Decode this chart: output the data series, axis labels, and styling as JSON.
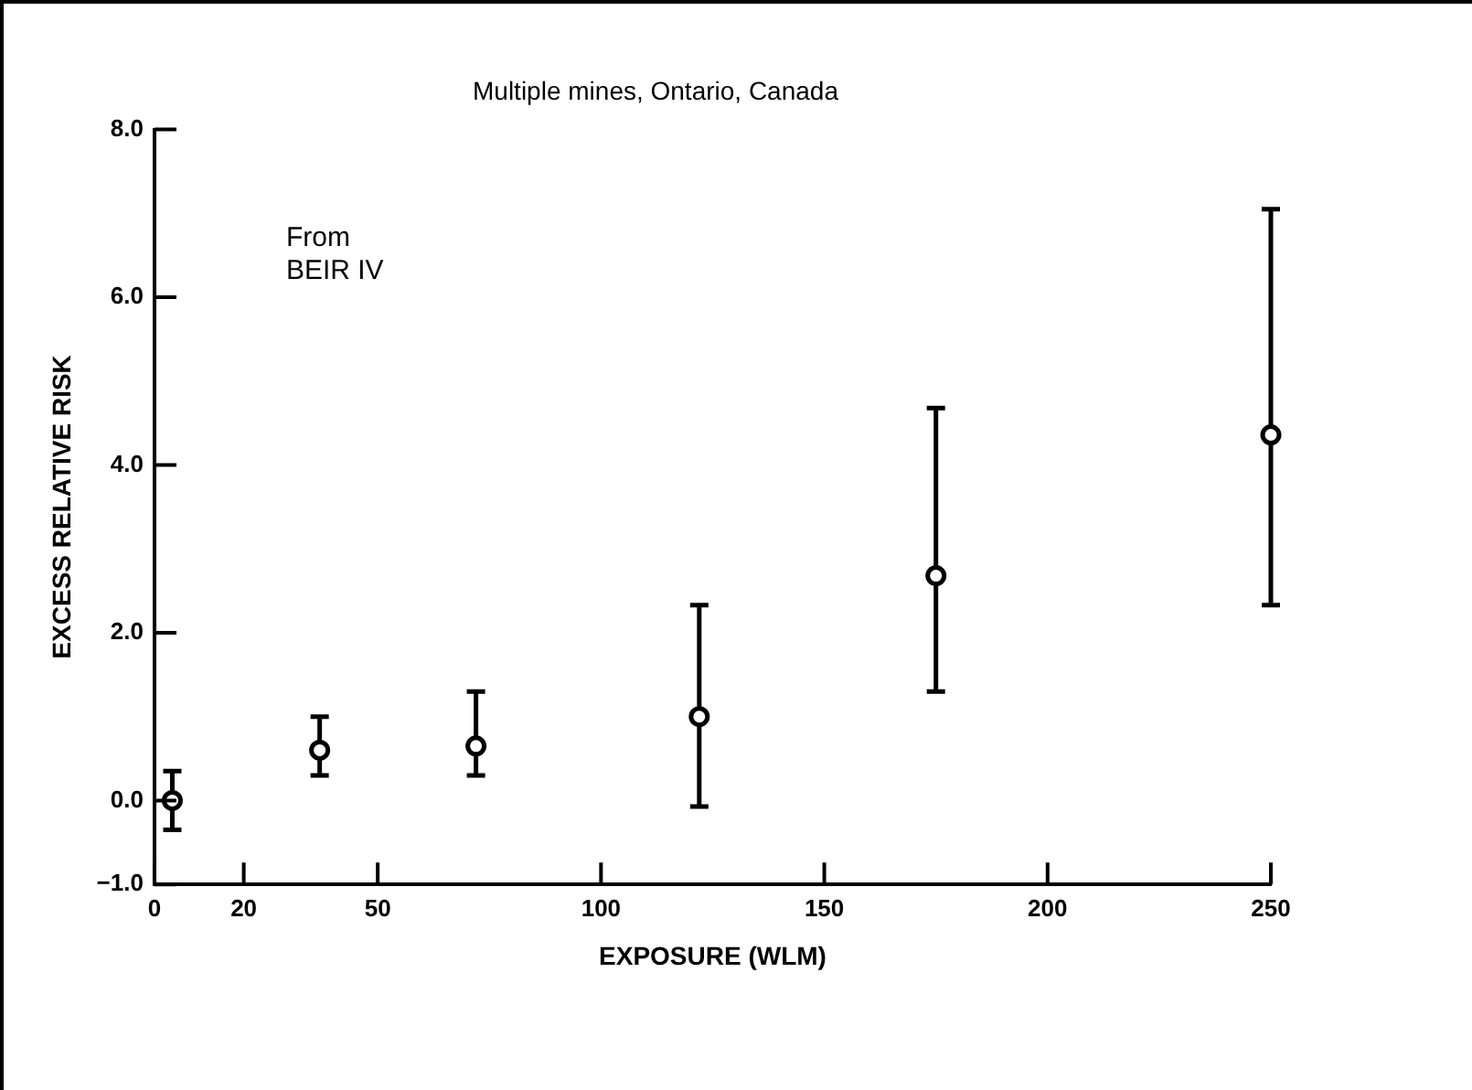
{
  "chart_data": {
    "type": "scatter",
    "title": "Multiple mines, Ontario, Canada",
    "xlabel": "EXPOSURE (WLM)",
    "ylabel": "EXCESS RELATIVE RISK",
    "annotations": [
      "From\nBEIR IV"
    ],
    "x": [
      4,
      37,
      72,
      122,
      175,
      250
    ],
    "values": [
      0,
      0.6,
      0.65,
      1.0,
      2.68,
      4.36
    ],
    "errors": [
      [
        -0.35,
        0.35
      ],
      [
        0.3,
        1.0
      ],
      [
        0.3,
        1.3
      ],
      [
        -0.07,
        2.33
      ],
      [
        1.3,
        4.68
      ],
      [
        2.33,
        7.05
      ]
    ],
    "color": "#000000",
    "marker": "circle",
    "xlim": [
      0,
      250
    ],
    "xticks": [
      0,
      20,
      50,
      100,
      150,
      200,
      250
    ],
    "ylim": [
      -1,
      8
    ],
    "yticks": [
      {
        "value": -1,
        "label": "−1.0"
      },
      {
        "value": 0,
        "label": "0.0"
      },
      {
        "value": 2,
        "label": "2.0"
      },
      {
        "value": 4,
        "label": "4.0"
      },
      {
        "value": 6,
        "label": "6.0"
      },
      {
        "value": 8,
        "label": "8.0"
      }
    ],
    "grid": false,
    "legend": false
  }
}
